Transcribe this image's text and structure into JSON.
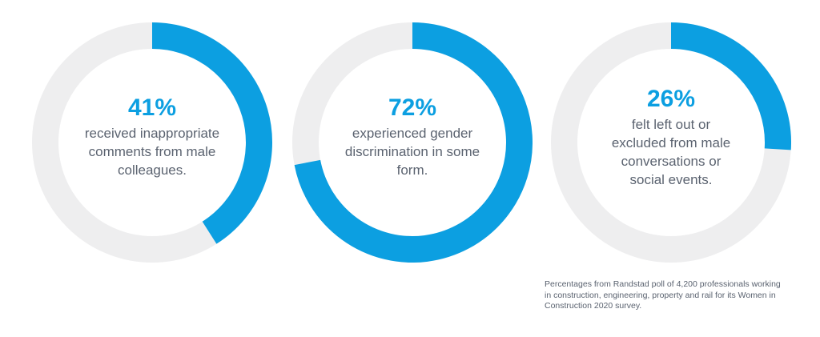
{
  "chart_data": {
    "type": "donut",
    "unit": "%",
    "legend": "none",
    "donuts": [
      {
        "value": 41,
        "percent_label": "41%",
        "description": "received inappropriate\ncomments from male\ncolleagues."
      },
      {
        "value": 72,
        "percent_label": "72%",
        "description": "experienced gender\ndiscrimination in some\nform."
      },
      {
        "value": 26,
        "percent_label": "26%",
        "description": "felt left out or\nexcluded from male\nconversations or\nsocial events."
      }
    ],
    "colors": {
      "arc": "#0c9fe1",
      "track": "#eeeeef",
      "text": "#5b6370"
    },
    "source_note": "Percentages from Randstad poll of 4,200 professionals working\nin construction, engineering, property and rail for its Women in\nConstruction 2020 survey."
  }
}
